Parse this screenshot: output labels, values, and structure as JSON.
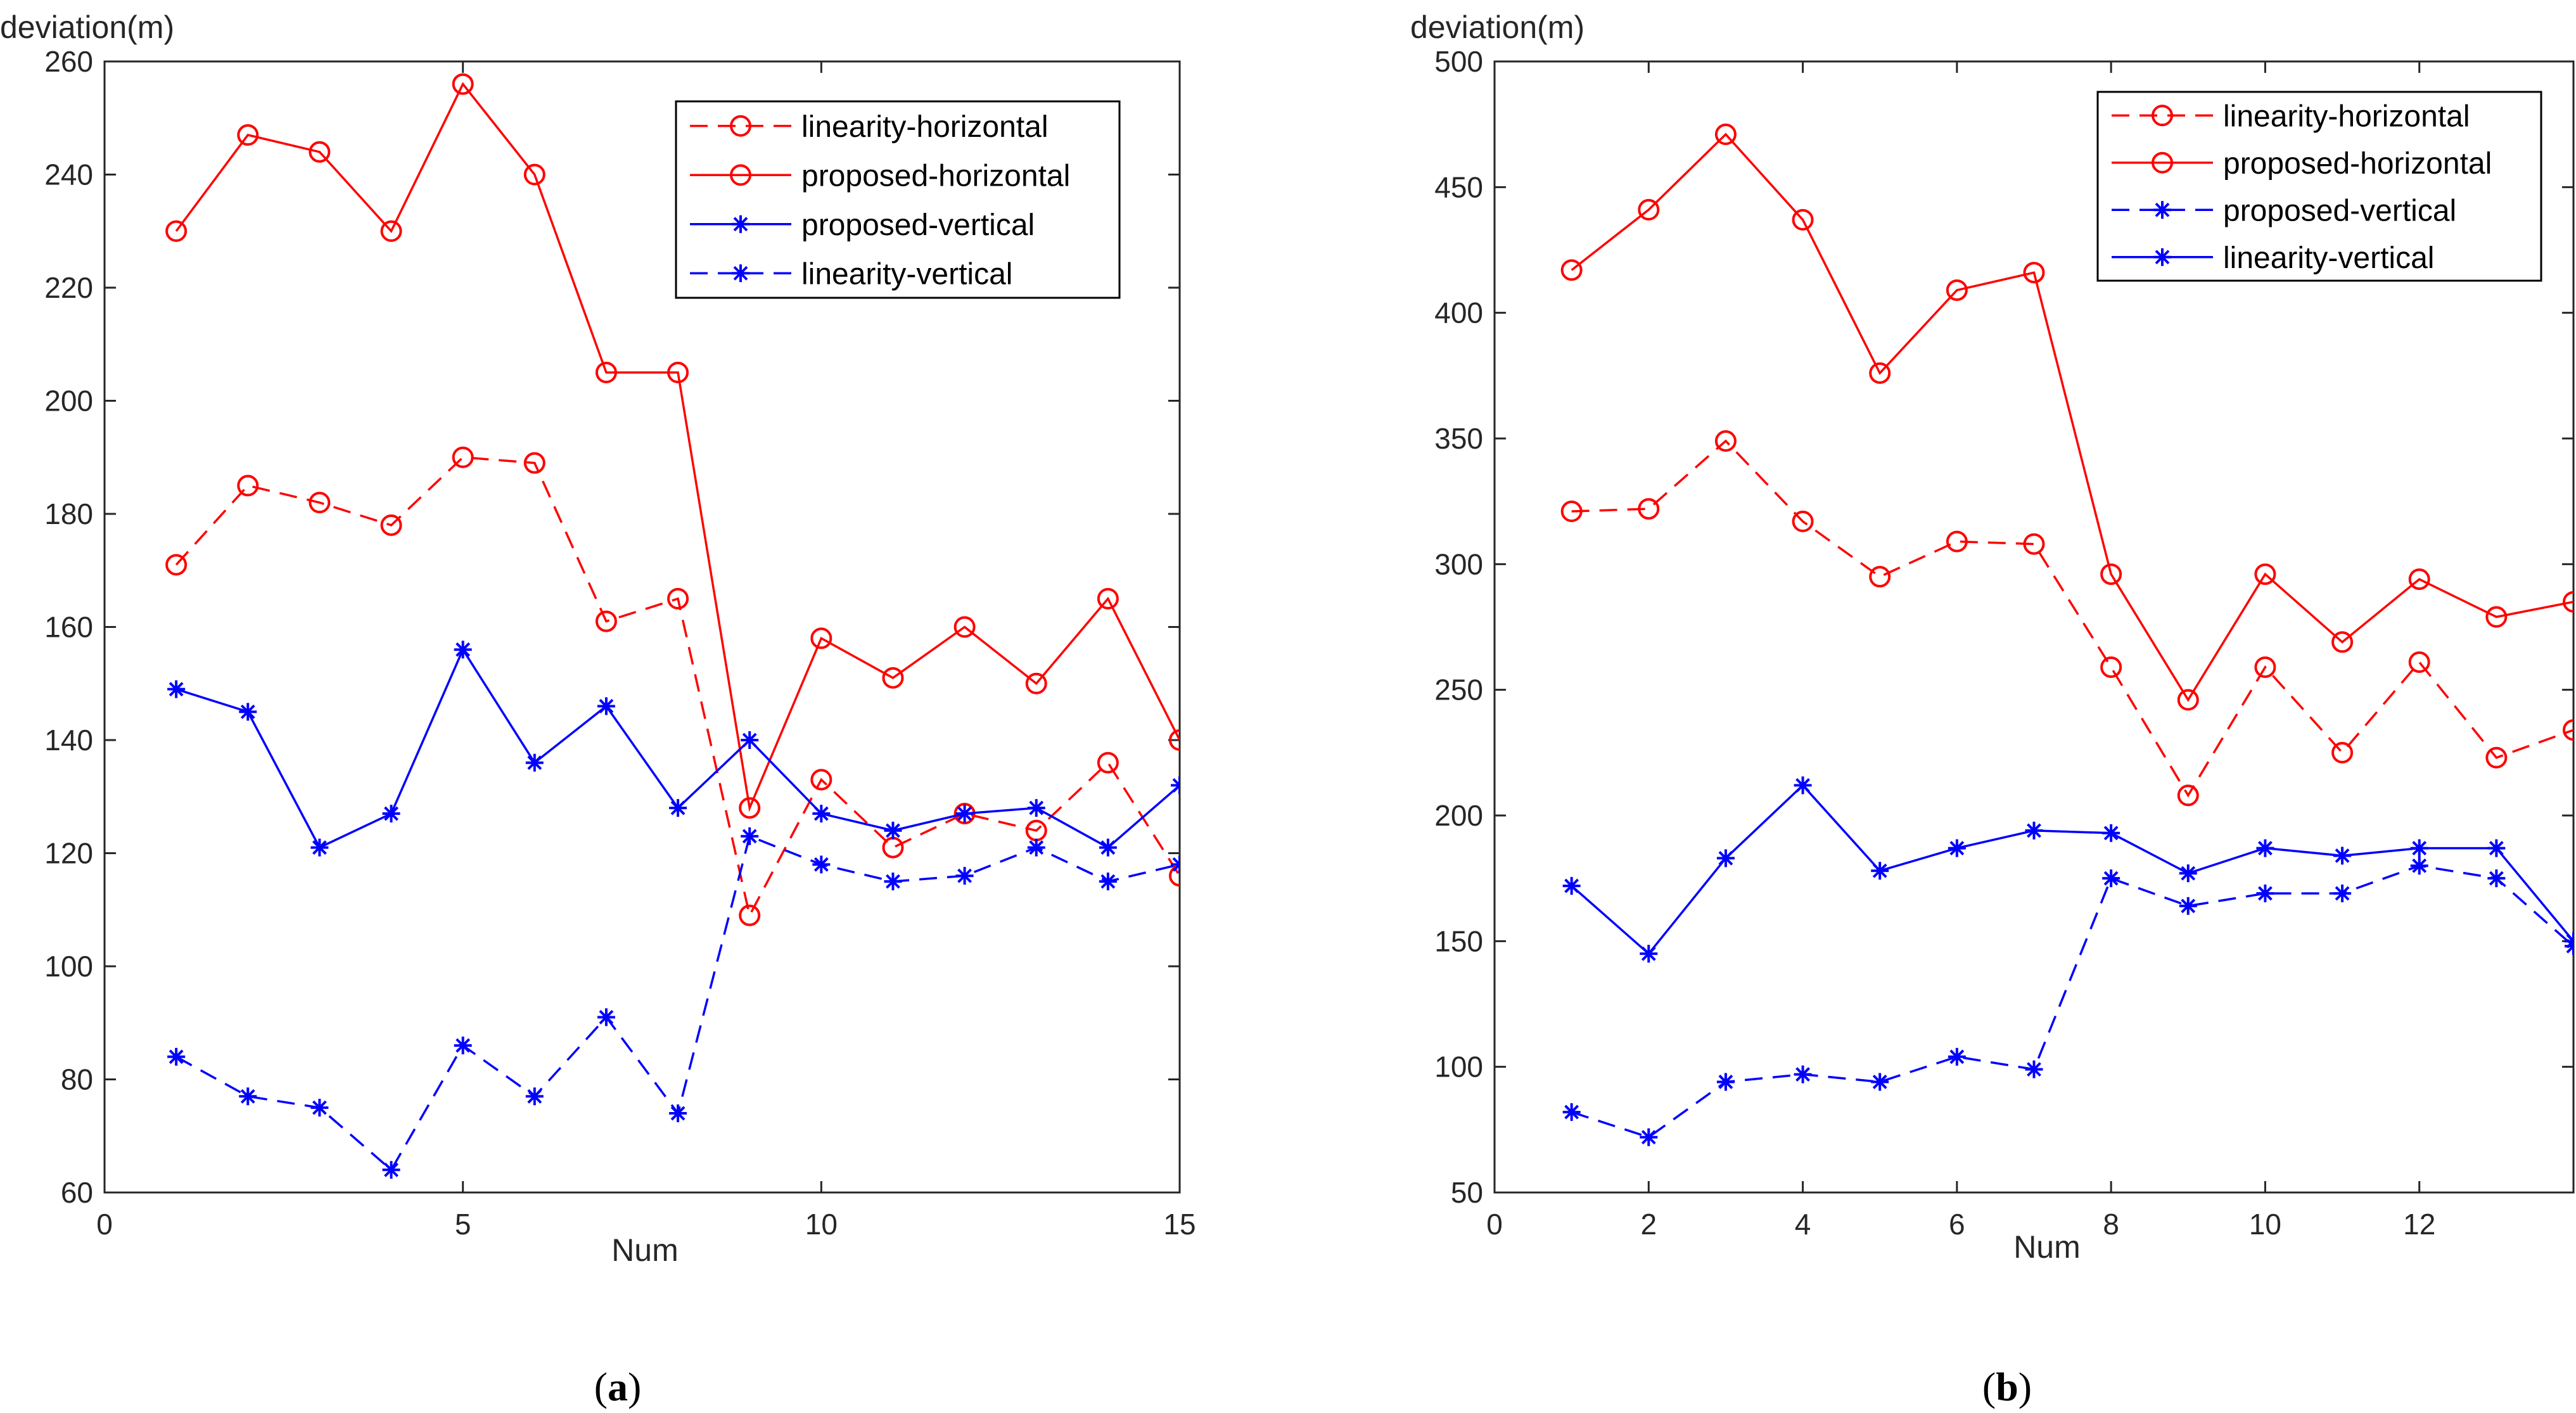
{
  "colors": {
    "red": "#ff0000",
    "blue": "#0000ff",
    "axis": "#262626",
    "text": "#262626"
  },
  "chart_data": [
    {
      "type": "line",
      "caption": "a",
      "xlabel": "Num",
      "ylabel": "deviation(m)",
      "xlim": [
        0,
        15
      ],
      "ylim": [
        60,
        260
      ],
      "xticks": [
        0,
        5,
        10,
        15
      ],
      "yticks": [
        60,
        80,
        100,
        120,
        140,
        160,
        180,
        200,
        220,
        240,
        260
      ],
      "grid": false,
      "legend_position": "top-right",
      "x": [
        1,
        2,
        3,
        4,
        5,
        6,
        7,
        8,
        9,
        10,
        11,
        12,
        13,
        14,
        15
      ],
      "series": [
        {
          "name": "linearity-horizontal",
          "color": "red",
          "line_style": "dashed",
          "marker": "circle",
          "values": [
            171,
            185,
            182,
            178,
            190,
            189,
            161,
            165,
            109,
            133,
            121,
            127,
            124,
            136,
            116
          ]
        },
        {
          "name": "proposed-horizontal",
          "color": "red",
          "line_style": "solid",
          "marker": "circle",
          "values": [
            230,
            247,
            244,
            230,
            256,
            240,
            205,
            205,
            128,
            158,
            151,
            160,
            150,
            165,
            140
          ]
        },
        {
          "name": "proposed-vertical",
          "color": "blue",
          "line_style": "solid",
          "marker": "asterisk",
          "values": [
            149,
            145,
            121,
            127,
            156,
            136,
            146,
            128,
            140,
            127,
            124,
            127,
            128,
            121,
            132
          ]
        },
        {
          "name": "linearity-vertical",
          "color": "blue",
          "line_style": "dashed",
          "marker": "asterisk",
          "values": [
            84,
            77,
            75,
            64,
            86,
            77,
            91,
            74,
            123,
            118,
            115,
            116,
            121,
            115,
            118
          ]
        }
      ]
    },
    {
      "type": "line",
      "caption": "b",
      "xlabel": "Num",
      "ylabel": "deviation(m)",
      "xlim": [
        0,
        14
      ],
      "ylim": [
        50,
        500
      ],
      "xticks": [
        0,
        2,
        4,
        6,
        8,
        10,
        12
      ],
      "yticks": [
        50,
        100,
        150,
        200,
        250,
        300,
        350,
        400,
        450,
        500
      ],
      "grid": false,
      "legend_position": "top-right",
      "x": [
        1,
        2,
        3,
        4,
        5,
        6,
        7,
        8,
        9,
        10,
        11,
        12,
        13,
        14
      ],
      "series": [
        {
          "name": "linearity-horizontal",
          "color": "red",
          "line_style": "dashed",
          "marker": "circle",
          "values": [
            321,
            322,
            349,
            317,
            295,
            309,
            308,
            259,
            208,
            259,
            225,
            261,
            223,
            234
          ]
        },
        {
          "name": "proposed-horizontal",
          "color": "red",
          "line_style": "solid",
          "marker": "circle",
          "values": [
            417,
            441,
            471,
            437,
            376,
            409,
            416,
            296,
            246,
            296,
            269,
            294,
            279,
            285
          ]
        },
        {
          "name": "proposed-vertical",
          "color": "blue",
          "line_style": "dashed",
          "marker": "asterisk",
          "values": [
            82,
            72,
            94,
            97,
            94,
            104,
            99,
            175,
            164,
            169,
            169,
            180,
            175,
            148
          ]
        },
        {
          "name": "linearity-vertical",
          "color": "blue",
          "line_style": "solid",
          "marker": "asterisk",
          "values": [
            172,
            145,
            183,
            212,
            178,
            187,
            194,
            193,
            177,
            187,
            184,
            187,
            187,
            150
          ]
        }
      ]
    }
  ]
}
